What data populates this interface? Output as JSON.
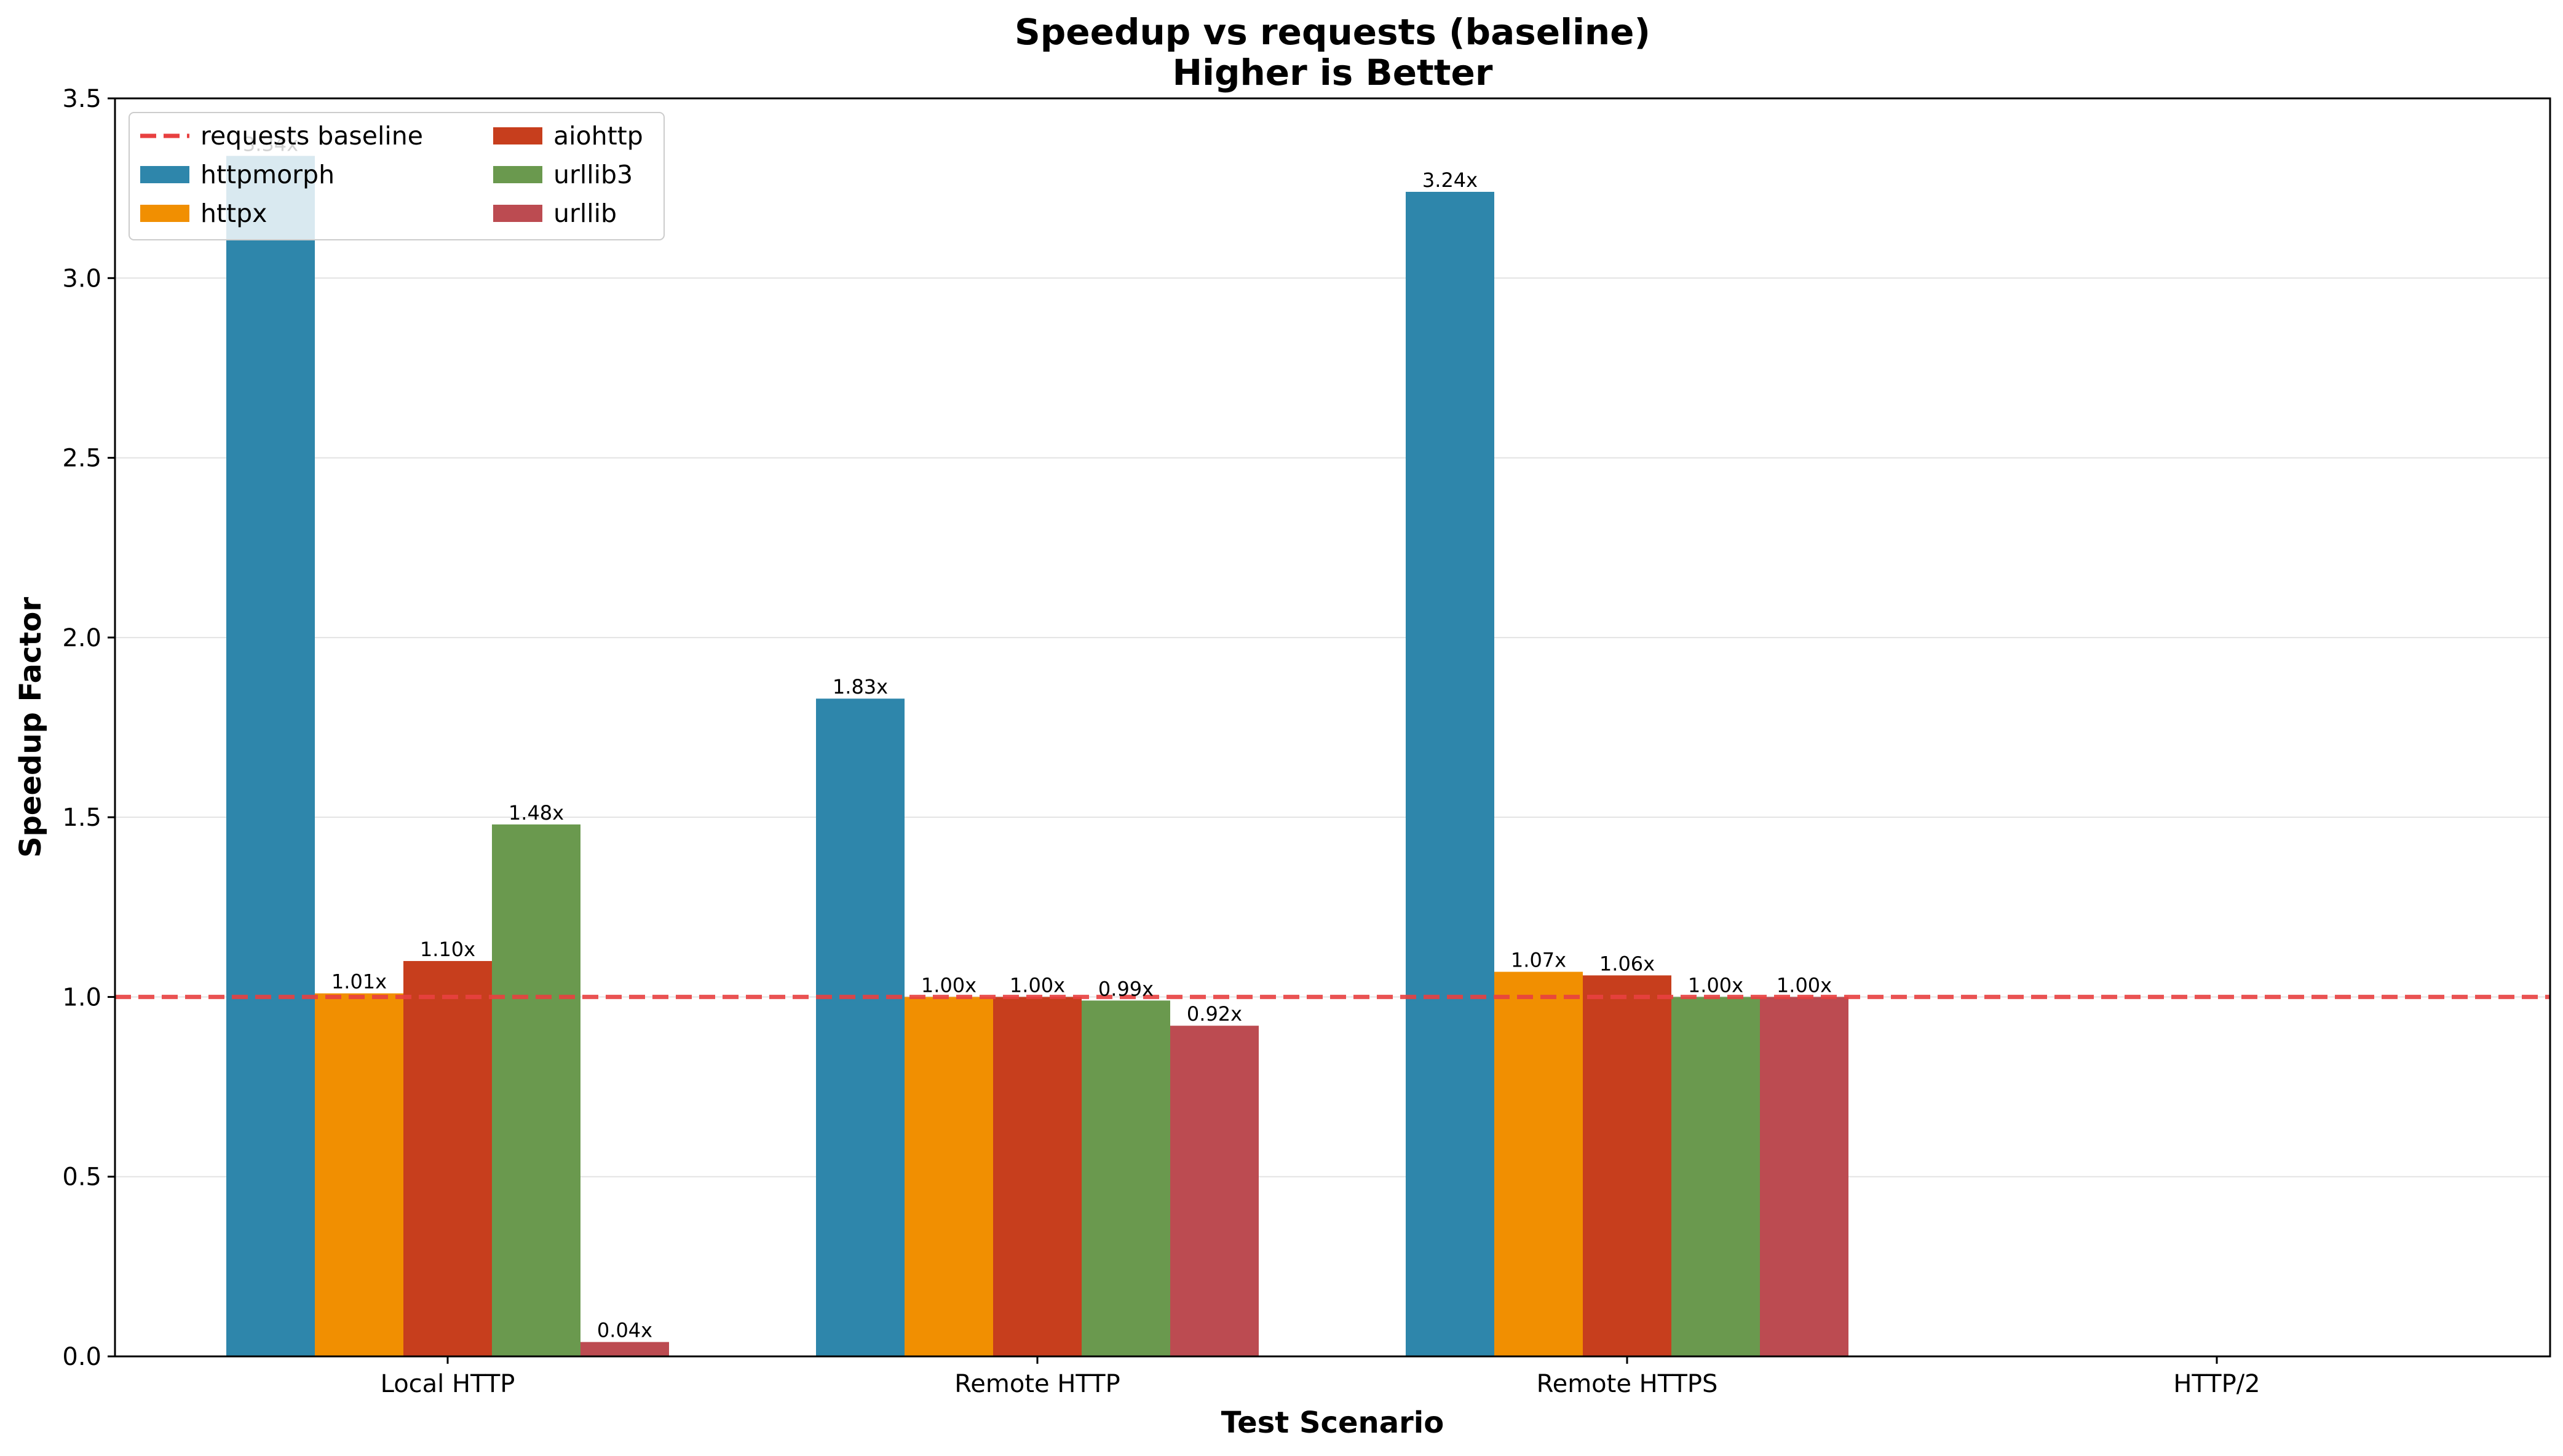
{
  "chart_data": {
    "type": "bar",
    "title": "Speedup vs requests (baseline)",
    "subtitle": "Higher is Better",
    "xlabel": "Test Scenario",
    "ylabel": "Speedup Factor",
    "categories": [
      "Local HTTP",
      "Remote HTTP",
      "Remote HTTPS",
      "HTTP/2"
    ],
    "ylim": [
      0,
      3.5
    ],
    "yticks": [
      "0.0",
      "0.5",
      "1.0",
      "1.5",
      "2.0",
      "2.5",
      "3.0",
      "3.5"
    ],
    "grid": "y",
    "legend_position": "upper-left",
    "baseline": {
      "name": "requests baseline",
      "value": 1.0,
      "color": "#e84040",
      "style": "dashed"
    },
    "series": [
      {
        "name": "httpmorph",
        "color": "#2e86ab",
        "values": [
          3.34,
          1.83,
          3.24,
          null
        ],
        "labels": [
          "3.34x",
          "1.83x",
          "3.24x",
          null
        ]
      },
      {
        "name": "httpx",
        "color": "#f18f01",
        "values": [
          1.01,
          1.0,
          1.07,
          null
        ],
        "labels": [
          "1.01x",
          "1.00x",
          "1.07x",
          null
        ]
      },
      {
        "name": "aiohttp",
        "color": "#c73e1d",
        "values": [
          1.1,
          1.0,
          1.06,
          null
        ],
        "labels": [
          "1.10x",
          "1.00x",
          "1.06x",
          null
        ]
      },
      {
        "name": "urllib3",
        "color": "#6a994e",
        "values": [
          1.48,
          0.99,
          1.0,
          null
        ],
        "labels": [
          "1.48x",
          "0.99x",
          "1.00x",
          null
        ]
      },
      {
        "name": "urllib",
        "color": "#bc4b51",
        "values": [
          0.04,
          0.92,
          1.0,
          null
        ],
        "labels": [
          "0.04x",
          "0.92x",
          "1.00x",
          null
        ]
      }
    ]
  }
}
